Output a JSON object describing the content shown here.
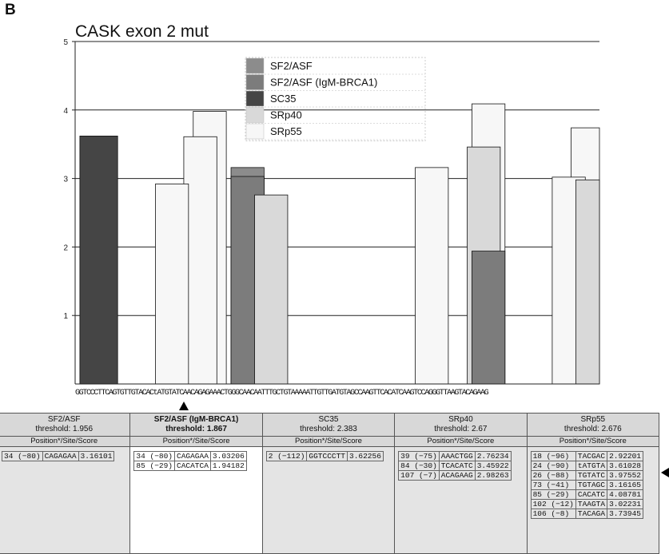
{
  "panel_letter": "B",
  "chart_data": {
    "type": "bar",
    "title": "CASK exon 2 mut",
    "ylim": [
      0,
      5
    ],
    "yticks": [
      1,
      2,
      3,
      4,
      5
    ],
    "grid": true,
    "legend_position": "top-center",
    "sequence": "GGTCCCTTCAGTGTTGTACACtATGTATCAACAGAGAAACTGGGCAACAATTTGCTGTAAAAATTGTTGATGTAGCCAAGTTCACATCAAGTCCAGGGTTAAGTACAGAAG",
    "series": [
      {
        "name": "SF2/ASF",
        "color": "#8c8c8c",
        "points": [
          {
            "pos": 34,
            "value": 3.16
          }
        ]
      },
      {
        "name": "SF2/ASF (IgM-BRCA1)",
        "color": "#7c7c7c",
        "points": [
          {
            "pos": 34,
            "value": 3.03
          },
          {
            "pos": 85,
            "value": 1.94
          }
        ]
      },
      {
        "name": "SC35",
        "color": "#454545",
        "points": [
          {
            "pos": 2,
            "value": 3.62
          }
        ]
      },
      {
        "name": "SRp40",
        "color": "#d9d9d9",
        "points": [
          {
            "pos": 39,
            "value": 2.76
          },
          {
            "pos": 84,
            "value": 3.46
          },
          {
            "pos": 107,
            "value": 2.98
          }
        ]
      },
      {
        "name": "SRp55",
        "color": "#f7f7f7",
        "points": [
          {
            "pos": 18,
            "value": 2.92
          },
          {
            "pos": 24,
            "value": 3.61
          },
          {
            "pos": 26,
            "value": 3.98
          },
          {
            "pos": 73,
            "value": 3.16
          },
          {
            "pos": 85,
            "value": 4.09
          },
          {
            "pos": 102,
            "value": 3.02
          },
          {
            "pos": 106,
            "value": 3.74
          }
        ]
      }
    ]
  },
  "table": {
    "subheader": "Position*/Site/Score",
    "columns": [
      {
        "name": "SF2/ASF",
        "threshold": "threshold: 1.956",
        "bold": false,
        "rows": [
          [
            "34 (−80)",
            "CAGAGAA",
            "3.16101"
          ]
        ]
      },
      {
        "name": "SF2/ASF (IgM-BRCA1)",
        "threshold": "threshold: 1.867",
        "bold": true,
        "rows": [
          [
            "34 (−80)",
            "CAGAGAA",
            "3.03206"
          ],
          [
            "85 (−29)",
            "CACATCA",
            "1.94182"
          ]
        ]
      },
      {
        "name": "SC35",
        "threshold": "threshold: 2.383",
        "bold": false,
        "rows": [
          [
            "2 (−112)",
            "GGTCCCTT",
            "3.62256"
          ]
        ]
      },
      {
        "name": "SRp40",
        "threshold": "threshold: 2.67",
        "bold": false,
        "rows": [
          [
            "39 (−75)",
            "AAACTGG",
            "2.76234"
          ],
          [
            "84 (−30)",
            "TCACATC",
            "3.45922"
          ],
          [
            "107 (−7)",
            "ACAGAAG",
            "2.98263"
          ]
        ]
      },
      {
        "name": "SRp55",
        "threshold": "threshold: 2.676",
        "bold": false,
        "rows": [
          [
            "18 (−96)",
            "TACGAC",
            "2.92201"
          ],
          [
            "24 (−90)",
            "tATGTA",
            "3.61028"
          ],
          [
            "26 (−88)",
            "TGTATC",
            "3.97552"
          ],
          [
            "73 (−41)",
            "TGTAGC",
            "3.16165"
          ],
          [
            "85 (−29)",
            "CACATC",
            "4.08781"
          ],
          [
            "102 (−12)",
            "TAAGTA",
            "3.02231"
          ],
          [
            "106 (−8)",
            "TACAGA",
            "3.73945"
          ]
        ]
      }
    ]
  }
}
